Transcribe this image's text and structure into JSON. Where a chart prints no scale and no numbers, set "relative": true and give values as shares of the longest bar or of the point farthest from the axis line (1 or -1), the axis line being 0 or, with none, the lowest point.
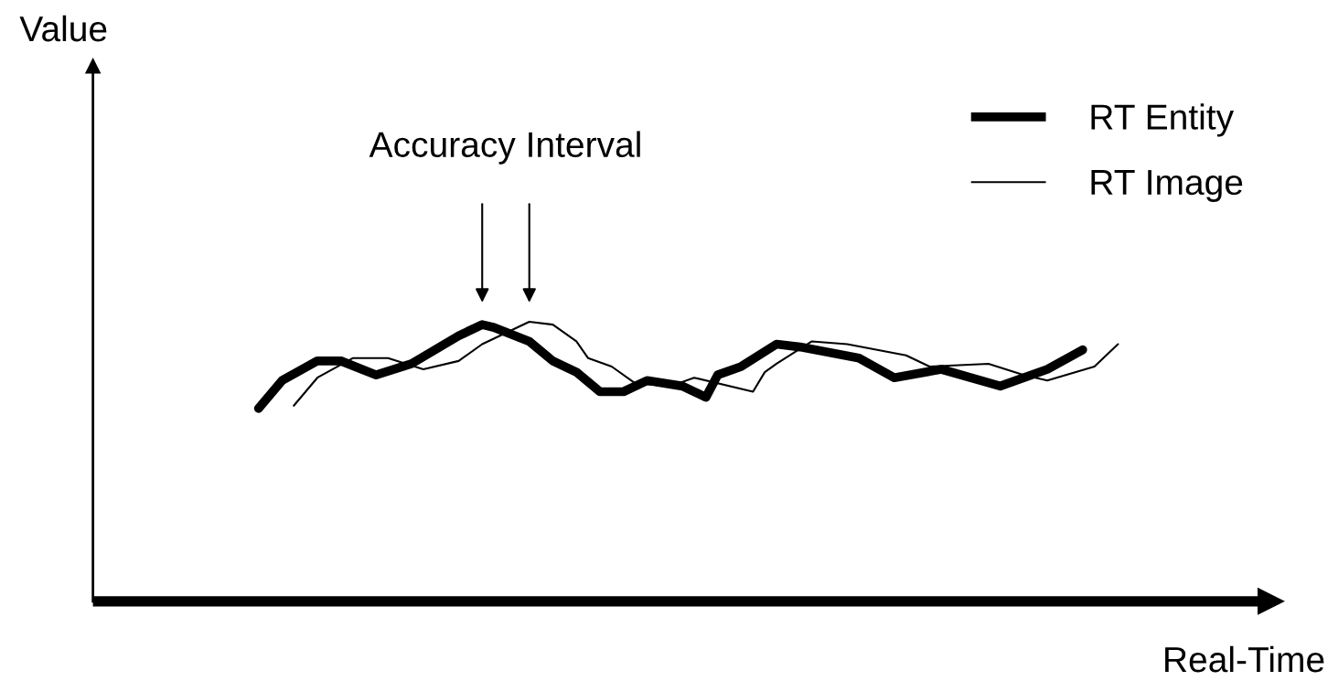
{
  "chart_data": {
    "type": "line",
    "relative": true,
    "xlabel": "Real-Time",
    "legend": "top right",
    "marker": "none",
    "line_style": "solid",
    "annotations": [
      "Accuracy Interval",
      "Value"
    ],
    "categories": [
      null,
      null,
      null,
      null,
      null,
      null,
      null,
      null,
      null,
      null,
      null,
      null,
      null,
      null,
      null,
      null,
      null,
      null,
      null,
      null,
      null,
      null,
      null,
      null,
      null,
      null,
      null,
      null,
      null,
      null,
      null,
      null,
      null,
      null,
      null,
      null,
      null,
      null,
      null,
      null,
      null,
      null,
      null,
      null,
      null,
      null,
      null,
      null,
      null,
      null,
      null,
      null,
      null,
      null,
      null,
      null,
      null,
      null,
      null,
      null,
      null,
      null,
      null,
      null,
      null,
      null,
      null,
      null,
      null,
      null,
      null,
      null,
      null,
      null
    ],
    "series": [
      {
        "name": "RT Entity",
        "color": "#000000",
        "values": [
          0.69,
          null,
          0.79,
          null,
          null,
          0.86,
          null,
          0.86,
          null,
          null,
          0.81,
          null,
          null,
          0.85,
          null,
          null,
          null,
          0.95,
          null,
          0.99,
          0.98,
          null,
          null,
          0.93,
          null,
          0.86,
          null,
          0.82,
          null,
          0.75,
          null,
          0.75,
          null,
          0.79,
          null,
          null,
          0.77,
          null,
          0.73,
          0.81,
          null,
          0.84,
          null,
          null,
          0.92,
          null,
          0.91,
          null,
          null,
          null,
          null,
          0.87,
          null,
          null,
          0.8,
          null,
          null,
          null,
          0.83,
          null,
          null,
          null,
          null,
          0.77,
          null,
          null,
          null,
          0.83,
          null,
          null,
          0.9,
          null,
          null,
          null
        ]
      },
      {
        "name": "RT Image",
        "color": "#000000",
        "values": [
          null,
          null,
          null,
          0.7,
          null,
          0.8,
          null,
          null,
          0.87,
          null,
          null,
          0.87,
          null,
          null,
          0.83,
          null,
          null,
          0.86,
          null,
          0.92,
          null,
          null,
          null,
          1.0,
          null,
          0.99,
          null,
          0.93,
          0.87,
          null,
          0.84,
          null,
          0.78,
          null,
          null,
          0.77,
          null,
          0.8,
          null,
          null,
          null,
          null,
          0.75,
          0.82,
          0.85,
          null,
          null,
          0.93,
          null,
          null,
          0.92,
          null,
          null,
          null,
          null,
          0.88,
          null,
          0.84,
          null,
          null,
          null,
          null,
          0.85,
          null,
          null,
          0.81,
          null,
          0.79,
          null,
          null,
          null,
          0.84,
          null,
          0.92
        ]
      }
    ]
  }
}
